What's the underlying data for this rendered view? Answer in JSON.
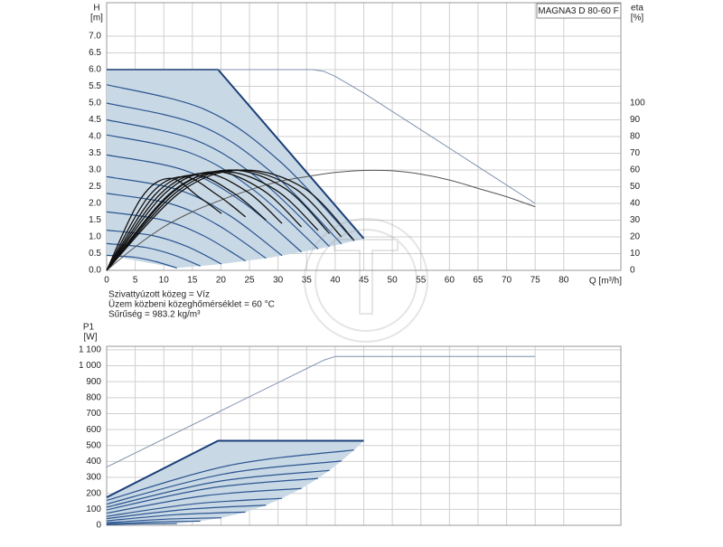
{
  "chart_data": [
    {
      "type": "line",
      "title": "MAGNA3 D 80-60 F",
      "ylabel": "H",
      "ylabel_unit": "[m]",
      "y2label": "eta",
      "y2label_unit": "[%]",
      "xlabel": "Q [m³/h]",
      "annotations": [
        "Szivattyúzott közeg = Víz",
        "Üzem közbeni közeghőmérséklet = 60 °C",
        "Sűrűség = 983.2 kg/m³"
      ],
      "xlim": [
        0,
        90
      ],
      "xticks": [
        0,
        5,
        10,
        15,
        20,
        25,
        30,
        35,
        40,
        45,
        50,
        55,
        60,
        65,
        70,
        75,
        80
      ],
      "ylim": [
        0,
        8
      ],
      "yticks": [
        {
          "value": 0,
          "label": "0.0"
        },
        {
          "value": 0.5,
          "label": "0.5"
        },
        {
          "value": 1,
          "label": "1.0"
        },
        {
          "value": 1.5,
          "label": "1.5"
        },
        {
          "value": 2,
          "label": "2.0"
        },
        {
          "value": 2.5,
          "label": "2.5"
        },
        {
          "value": 3,
          "label": "3.0"
        },
        {
          "value": 3.5,
          "label": "3.5"
        },
        {
          "value": 4,
          "label": "4.0"
        },
        {
          "value": 4.5,
          "label": "4.5"
        },
        {
          "value": 5,
          "label": "5.0"
        },
        {
          "value": 5.5,
          "label": "5.5"
        },
        {
          "value": 6,
          "label": "6.0"
        },
        {
          "value": 6.5,
          "label": "6.5"
        },
        {
          "value": 7,
          "label": "7.0"
        }
      ],
      "y2lim": [
        0,
        160
      ],
      "y2ticks": [
        0,
        10,
        20,
        30,
        40,
        50,
        60,
        70,
        80,
        90,
        100
      ],
      "grid": true,
      "range_fill": "#c9d8e5",
      "series": [
        {
          "kind": "max",
          "color": "#1b3f78",
          "width": 2,
          "smooth": false,
          "x": [
            0,
            19.5,
            45
          ],
          "values": [
            6,
            6,
            0.95
          ]
        },
        {
          "color": "#7f92ad",
          "width": 1,
          "smooth": false,
          "x": [
            0,
            36,
            38,
            40,
            45,
            55,
            65,
            75
          ],
          "values": [
            6,
            6,
            5.95,
            5.8,
            5.3,
            4.2,
            3.1,
            2.0
          ]
        },
        {
          "kind": "speed",
          "color": "#2a5590",
          "width": 1.2,
          "smooth": true,
          "x": [
            0,
            17.3,
            30.3,
            43.3
          ],
          "values": [
            5.55,
            4.8,
            3.26,
            0.88
          ]
        },
        {
          "kind": "speed",
          "color": "#2a5590",
          "width": 1.2,
          "smooth": true,
          "x": [
            0,
            16.4,
            28.8,
            41.1
          ],
          "values": [
            5.0,
            4.33,
            2.94,
            0.79
          ]
        },
        {
          "kind": "speed",
          "color": "#2a5590",
          "width": 1.2,
          "smooth": true,
          "x": [
            0,
            15.6,
            27.3,
            39.0
          ],
          "values": [
            4.5,
            3.89,
            2.64,
            0.71
          ]
        },
        {
          "kind": "speed",
          "color": "#2a5590",
          "width": 1.2,
          "smooth": true,
          "x": [
            0,
            14.8,
            25.9,
            37.0
          ],
          "values": [
            4.05,
            3.5,
            2.38,
            0.64
          ]
        },
        {
          "kind": "speed",
          "color": "#2a5590",
          "width": 1.2,
          "smooth": true,
          "x": [
            0,
            13.6,
            23.9,
            34.1
          ],
          "values": [
            3.45,
            2.99,
            2.03,
            0.55
          ]
        },
        {
          "kind": "speed",
          "color": "#2a5590",
          "width": 1.2,
          "smooth": true,
          "x": [
            0,
            12.3,
            21.5,
            30.7
          ],
          "values": [
            2.8,
            2.42,
            1.64,
            0.44
          ]
        },
        {
          "kind": "speed",
          "color": "#2a5590",
          "width": 1.2,
          "smooth": true,
          "x": [
            0,
            11.2,
            19.5,
            27.9
          ],
          "values": [
            2.3,
            1.99,
            1.35,
            0.36
          ]
        },
        {
          "kind": "speed",
          "color": "#2a5590",
          "width": 1.2,
          "smooth": true,
          "x": [
            0,
            9.7,
            17.0,
            24.3
          ],
          "values": [
            1.75,
            1.51,
            1.03,
            0.28
          ]
        },
        {
          "kind": "speed",
          "color": "#2a5590",
          "width": 1.2,
          "smooth": true,
          "x": [
            0,
            8.0,
            14.1,
            20.1
          ],
          "values": [
            1.2,
            1.04,
            0.71,
            0.19
          ]
        },
        {
          "kind": "speed",
          "color": "#2a5590",
          "width": 1.2,
          "smooth": true,
          "x": [
            0,
            6.6,
            11.5,
            16.4
          ],
          "values": [
            0.8,
            0.69,
            0.47,
            0.13
          ]
        },
        {
          "kind": "speed",
          "color": "#2a5590",
          "width": 1.2,
          "smooth": true,
          "x": [
            0,
            4.9,
            8.6,
            12.3
          ],
          "values": [
            0.45,
            0.39,
            0.26,
            0.07
          ]
        },
        {
          "axis": "y2",
          "color": "#555555",
          "width": 1,
          "smooth": true,
          "x": [
            0,
            5,
            10,
            15,
            20,
            25,
            30,
            35,
            40,
            45,
            50,
            55,
            60,
            65,
            70,
            75
          ],
          "values": [
            0,
            14,
            26,
            35,
            42,
            48,
            53,
            56,
            58.5,
            59.7,
            59.5,
            57.5,
            54,
            49,
            44,
            38
          ]
        },
        {
          "axis": "y2",
          "color": "#111111",
          "width": 1.3,
          "smooth": true,
          "x": [
            0,
            13.0,
            23.8,
            34.6,
            43.3
          ],
          "values": [
            0,
            47,
            60,
            49,
            18
          ]
        },
        {
          "axis": "y2",
          "color": "#111111",
          "width": 1.3,
          "smooth": true,
          "x": [
            0,
            12.3,
            22.6,
            32.9,
            41.1
          ],
          "values": [
            0,
            47,
            60,
            49,
            20
          ]
        },
        {
          "axis": "y2",
          "color": "#111111",
          "width": 1.3,
          "smooth": true,
          "x": [
            0,
            11.7,
            21.5,
            31.2,
            39.0
          ],
          "values": [
            0,
            47,
            60,
            49,
            22
          ]
        },
        {
          "axis": "y2",
          "color": "#111111",
          "width": 1.3,
          "smooth": true,
          "x": [
            0,
            11.1,
            20.4,
            29.6,
            37.0
          ],
          "values": [
            0,
            46,
            59,
            48,
            24
          ]
        },
        {
          "axis": "y2",
          "color": "#111111",
          "width": 1.3,
          "smooth": true,
          "x": [
            0,
            10.2,
            18.8,
            27.3,
            34.1
          ],
          "values": [
            0,
            46,
            59,
            48,
            26
          ]
        },
        {
          "axis": "y2",
          "color": "#111111",
          "width": 1.3,
          "smooth": true,
          "x": [
            0,
            9.2,
            16.9,
            24.6,
            30.7
          ],
          "values": [
            0,
            45,
            58,
            47,
            28
          ]
        },
        {
          "axis": "y2",
          "color": "#111111",
          "width": 1.3,
          "smooth": true,
          "x": [
            0,
            8.4,
            15.3,
            22.3,
            27.9
          ],
          "values": [
            0,
            45,
            57,
            46,
            30
          ]
        },
        {
          "axis": "y2",
          "color": "#111111",
          "width": 1.3,
          "smooth": true,
          "x": [
            0,
            7.3,
            13.4,
            19.4,
            24.3
          ],
          "values": [
            0,
            44,
            56,
            45,
            32
          ]
        },
        {
          "axis": "y2",
          "color": "#111111",
          "width": 1.3,
          "smooth": true,
          "x": [
            0,
            6.0,
            11.1,
            16.1,
            20.1
          ],
          "values": [
            0,
            43,
            55,
            44,
            34
          ]
        }
      ]
    },
    {
      "type": "line",
      "ylabel": "P1",
      "ylabel_unit": "[W]",
      "xlim": [
        0,
        90
      ],
      "ylim": [
        0,
        1122
      ],
      "yticks": [
        0,
        100,
        200,
        300,
        400,
        500,
        600,
        700,
        800,
        900,
        {
          "value": 1000,
          "label": "1 000"
        },
        {
          "value": 1100,
          "label": "1 100"
        }
      ],
      "grid": true,
      "range_fill": "#c9d8e5",
      "series": [
        {
          "kind": "max",
          "color": "#1b3f78",
          "width": 2,
          "smooth": false,
          "x": [
            0,
            19.5,
            45
          ],
          "values": [
            175,
            530,
            530
          ]
        },
        {
          "color": "#7f92ad",
          "width": 1,
          "smooth": false,
          "x": [
            0,
            36,
            38,
            40,
            75
          ],
          "values": [
            365,
            1000,
            1035,
            1058,
            1058
          ]
        },
        {
          "kind": "speed",
          "color": "#2a5590",
          "width": 1.2,
          "smooth": true,
          "x": [
            0,
            21.7,
            43.3
          ],
          "values": [
            156,
            377,
            472
          ]
        },
        {
          "kind": "speed",
          "color": "#2a5590",
          "width": 1.2,
          "smooth": true,
          "x": [
            0,
            20.6,
            41.1
          ],
          "values": [
            133,
            322,
            403
          ]
        },
        {
          "kind": "speed",
          "color": "#2a5590",
          "width": 1.2,
          "smooth": true,
          "x": [
            0,
            19.5,
            39.0
          ],
          "values": [
            114,
            275,
            344
          ]
        },
        {
          "kind": "speed",
          "color": "#2a5590",
          "width": 1.2,
          "smooth": true,
          "x": [
            0,
            18.5,
            37.0
          ],
          "values": [
            97,
            235,
            294
          ]
        },
        {
          "kind": "speed",
          "color": "#2a5590",
          "width": 1.2,
          "smooth": true,
          "x": [
            0,
            17.1,
            34.1
          ],
          "values": [
            76,
            185,
            231
          ]
        },
        {
          "kind": "speed",
          "color": "#2a5590",
          "width": 1.2,
          "smooth": true,
          "x": [
            0,
            15.4,
            30.7
          ],
          "values": [
            56,
            135,
            169
          ]
        },
        {
          "kind": "speed",
          "color": "#2a5590",
          "width": 1.2,
          "smooth": true,
          "x": [
            0,
            14.0,
            27.9
          ],
          "values": [
            42,
            100,
            126
          ]
        },
        {
          "kind": "speed",
          "color": "#2a5590",
          "width": 1.2,
          "smooth": true,
          "x": [
            0,
            12.2,
            24.3
          ],
          "values": [
            28,
            67,
            83
          ]
        },
        {
          "kind": "speed",
          "color": "#2a5590",
          "width": 1.2,
          "smooth": true,
          "x": [
            0,
            10.1,
            20.1
          ],
          "values": [
            16,
            38,
            47
          ]
        },
        {
          "kind": "speed",
          "color": "#2a5590",
          "width": 1.2,
          "smooth": true,
          "x": [
            0,
            8.2,
            16.4
          ],
          "values": [
            9,
            21,
            26
          ]
        },
        {
          "kind": "speed",
          "color": "#2a5590",
          "width": 1.2,
          "smooth": true,
          "x": [
            0,
            6.2,
            12.3
          ],
          "values": [
            4,
            9,
            11
          ]
        }
      ]
    }
  ]
}
